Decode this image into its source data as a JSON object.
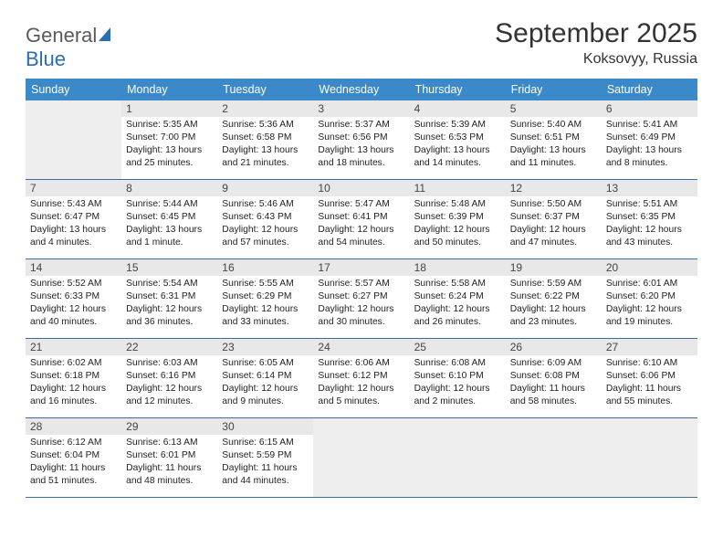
{
  "logo": {
    "text1": "General",
    "text2": "Blue"
  },
  "title": "September 2025",
  "location": "Koksovyy, Russia",
  "colors": {
    "header_bg": "#3b89c9",
    "header_text": "#ffffff",
    "daynum_bg": "#e8e8e8",
    "border": "#3b6ea0",
    "empty_bg": "#eeeeee",
    "logo_gray": "#5a5a5a",
    "logo_blue": "#2a6db5"
  },
  "weekdays": [
    "Sunday",
    "Monday",
    "Tuesday",
    "Wednesday",
    "Thursday",
    "Friday",
    "Saturday"
  ],
  "weeks": [
    [
      null,
      {
        "day": "1",
        "sunrise": "Sunrise: 5:35 AM",
        "sunset": "Sunset: 7:00 PM",
        "daylight": "Daylight: 13 hours and 25 minutes."
      },
      {
        "day": "2",
        "sunrise": "Sunrise: 5:36 AM",
        "sunset": "Sunset: 6:58 PM",
        "daylight": "Daylight: 13 hours and 21 minutes."
      },
      {
        "day": "3",
        "sunrise": "Sunrise: 5:37 AM",
        "sunset": "Sunset: 6:56 PM",
        "daylight": "Daylight: 13 hours and 18 minutes."
      },
      {
        "day": "4",
        "sunrise": "Sunrise: 5:39 AM",
        "sunset": "Sunset: 6:53 PM",
        "daylight": "Daylight: 13 hours and 14 minutes."
      },
      {
        "day": "5",
        "sunrise": "Sunrise: 5:40 AM",
        "sunset": "Sunset: 6:51 PM",
        "daylight": "Daylight: 13 hours and 11 minutes."
      },
      {
        "day": "6",
        "sunrise": "Sunrise: 5:41 AM",
        "sunset": "Sunset: 6:49 PM",
        "daylight": "Daylight: 13 hours and 8 minutes."
      }
    ],
    [
      {
        "day": "7",
        "sunrise": "Sunrise: 5:43 AM",
        "sunset": "Sunset: 6:47 PM",
        "daylight": "Daylight: 13 hours and 4 minutes."
      },
      {
        "day": "8",
        "sunrise": "Sunrise: 5:44 AM",
        "sunset": "Sunset: 6:45 PM",
        "daylight": "Daylight: 13 hours and 1 minute."
      },
      {
        "day": "9",
        "sunrise": "Sunrise: 5:46 AM",
        "sunset": "Sunset: 6:43 PM",
        "daylight": "Daylight: 12 hours and 57 minutes."
      },
      {
        "day": "10",
        "sunrise": "Sunrise: 5:47 AM",
        "sunset": "Sunset: 6:41 PM",
        "daylight": "Daylight: 12 hours and 54 minutes."
      },
      {
        "day": "11",
        "sunrise": "Sunrise: 5:48 AM",
        "sunset": "Sunset: 6:39 PM",
        "daylight": "Daylight: 12 hours and 50 minutes."
      },
      {
        "day": "12",
        "sunrise": "Sunrise: 5:50 AM",
        "sunset": "Sunset: 6:37 PM",
        "daylight": "Daylight: 12 hours and 47 minutes."
      },
      {
        "day": "13",
        "sunrise": "Sunrise: 5:51 AM",
        "sunset": "Sunset: 6:35 PM",
        "daylight": "Daylight: 12 hours and 43 minutes."
      }
    ],
    [
      {
        "day": "14",
        "sunrise": "Sunrise: 5:52 AM",
        "sunset": "Sunset: 6:33 PM",
        "daylight": "Daylight: 12 hours and 40 minutes."
      },
      {
        "day": "15",
        "sunrise": "Sunrise: 5:54 AM",
        "sunset": "Sunset: 6:31 PM",
        "daylight": "Daylight: 12 hours and 36 minutes."
      },
      {
        "day": "16",
        "sunrise": "Sunrise: 5:55 AM",
        "sunset": "Sunset: 6:29 PM",
        "daylight": "Daylight: 12 hours and 33 minutes."
      },
      {
        "day": "17",
        "sunrise": "Sunrise: 5:57 AM",
        "sunset": "Sunset: 6:27 PM",
        "daylight": "Daylight: 12 hours and 30 minutes."
      },
      {
        "day": "18",
        "sunrise": "Sunrise: 5:58 AM",
        "sunset": "Sunset: 6:24 PM",
        "daylight": "Daylight: 12 hours and 26 minutes."
      },
      {
        "day": "19",
        "sunrise": "Sunrise: 5:59 AM",
        "sunset": "Sunset: 6:22 PM",
        "daylight": "Daylight: 12 hours and 23 minutes."
      },
      {
        "day": "20",
        "sunrise": "Sunrise: 6:01 AM",
        "sunset": "Sunset: 6:20 PM",
        "daylight": "Daylight: 12 hours and 19 minutes."
      }
    ],
    [
      {
        "day": "21",
        "sunrise": "Sunrise: 6:02 AM",
        "sunset": "Sunset: 6:18 PM",
        "daylight": "Daylight: 12 hours and 16 minutes."
      },
      {
        "day": "22",
        "sunrise": "Sunrise: 6:03 AM",
        "sunset": "Sunset: 6:16 PM",
        "daylight": "Daylight: 12 hours and 12 minutes."
      },
      {
        "day": "23",
        "sunrise": "Sunrise: 6:05 AM",
        "sunset": "Sunset: 6:14 PM",
        "daylight": "Daylight: 12 hours and 9 minutes."
      },
      {
        "day": "24",
        "sunrise": "Sunrise: 6:06 AM",
        "sunset": "Sunset: 6:12 PM",
        "daylight": "Daylight: 12 hours and 5 minutes."
      },
      {
        "day": "25",
        "sunrise": "Sunrise: 6:08 AM",
        "sunset": "Sunset: 6:10 PM",
        "daylight": "Daylight: 12 hours and 2 minutes."
      },
      {
        "day": "26",
        "sunrise": "Sunrise: 6:09 AM",
        "sunset": "Sunset: 6:08 PM",
        "daylight": "Daylight: 11 hours and 58 minutes."
      },
      {
        "day": "27",
        "sunrise": "Sunrise: 6:10 AM",
        "sunset": "Sunset: 6:06 PM",
        "daylight": "Daylight: 11 hours and 55 minutes."
      }
    ],
    [
      {
        "day": "28",
        "sunrise": "Sunrise: 6:12 AM",
        "sunset": "Sunset: 6:04 PM",
        "daylight": "Daylight: 11 hours and 51 minutes."
      },
      {
        "day": "29",
        "sunrise": "Sunrise: 6:13 AM",
        "sunset": "Sunset: 6:01 PM",
        "daylight": "Daylight: 11 hours and 48 minutes."
      },
      {
        "day": "30",
        "sunrise": "Sunrise: 6:15 AM",
        "sunset": "Sunset: 5:59 PM",
        "daylight": "Daylight: 11 hours and 44 minutes."
      },
      null,
      null,
      null,
      null
    ]
  ]
}
